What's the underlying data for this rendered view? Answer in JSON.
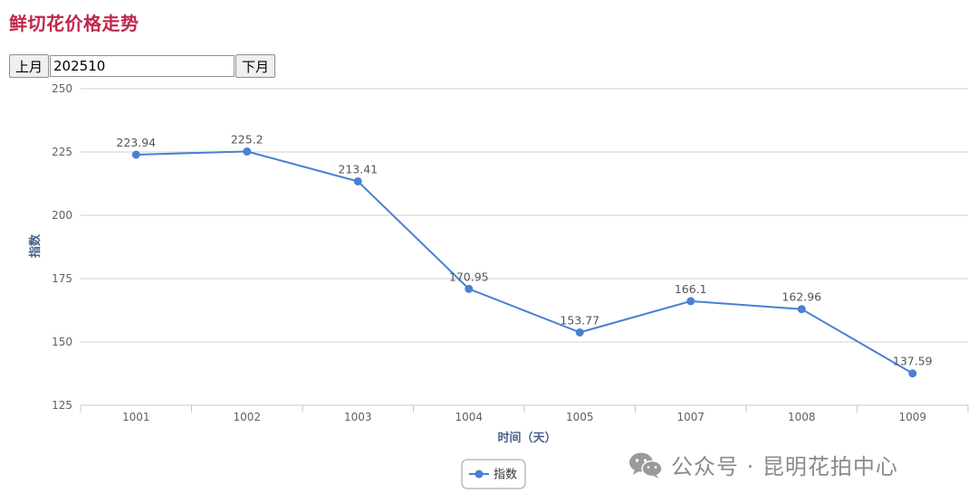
{
  "page": {
    "title": "鲜切花价格走势"
  },
  "controls": {
    "prev_label": "上月",
    "month_value": "202510",
    "next_label": "下月"
  },
  "colors": {
    "title": "#c0264b",
    "series": "#4a7fd4",
    "grid": "#d0d0d0",
    "axis_title": "#4a5f8a"
  },
  "chart_data": {
    "type": "line",
    "categories": [
      "1001",
      "1002",
      "1003",
      "1004",
      "1005",
      "1007",
      "1008",
      "1009"
    ],
    "series": [
      {
        "name": "指数",
        "values": [
          223.94,
          225.2,
          213.41,
          170.95,
          153.77,
          166.1,
          162.96,
          137.59
        ]
      }
    ],
    "data_labels": [
      "223.94",
      "225.2",
      "213.41",
      "170.95",
      "153.77",
      "166.1",
      "162.96",
      "137.59"
    ],
    "xlabel": "时间（天）",
    "ylabel": "指数",
    "ylim": [
      125,
      250
    ],
    "yticks": [
      125,
      150,
      175,
      200,
      225,
      250
    ],
    "grid": true,
    "legend": "bottom-center"
  },
  "watermark": {
    "text": "公众号 · 昆明花拍中心",
    "icon": "wechat-icon"
  }
}
